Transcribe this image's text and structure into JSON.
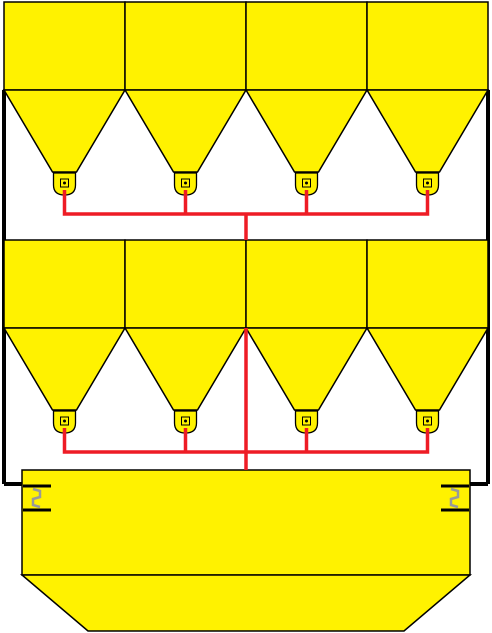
{
  "colors": {
    "hopper_fill": "#fff200",
    "outline": "#000000",
    "pipe": "#ee1c25",
    "valve_fill": "#fff200",
    "spring": "#999999",
    "background": "#ffffff"
  },
  "diagram": {
    "upper_bank": {
      "hopper_count": 4
    },
    "lower_bank": {
      "hopper_count": 4
    },
    "collection_bin": {
      "springs": 2
    },
    "icons": [
      "hopper",
      "discharge-valve",
      "pipe",
      "support-spring",
      "frame-rail"
    ]
  }
}
